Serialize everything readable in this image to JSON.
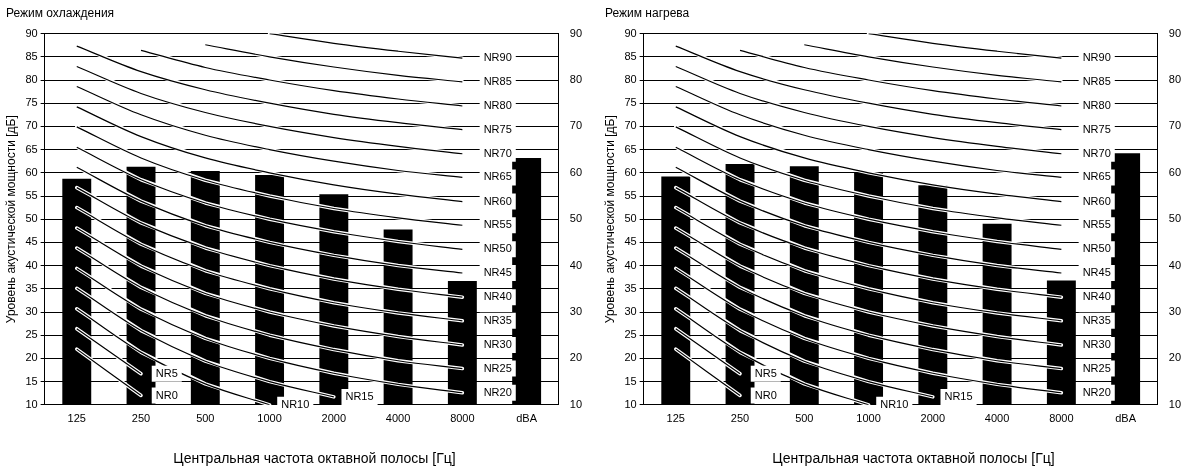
{
  "chart_data": [
    {
      "type": "bar",
      "title": "Режим охлаждения",
      "xlabel": "Центральная частота октавной полосы [Гц]",
      "ylabel": "Уровень акустической мощности [дБ]",
      "categories": [
        "125",
        "250",
        "500",
        "1000",
        "2000",
        "4000",
        "8000",
        "dBA"
      ],
      "grid": "y",
      "marker": "none",
      "ylim": [
        10,
        90
      ],
      "yticks": [
        10,
        15,
        20,
        25,
        30,
        35,
        40,
        45,
        50,
        55,
        60,
        65,
        70,
        75,
        80,
        85,
        90
      ],
      "y2lim": [
        10,
        90
      ],
      "y2ticks": [
        10,
        20,
        30,
        40,
        50,
        60,
        70,
        80,
        90
      ],
      "series": [
        {
          "type": "bar",
          "color": "#000000",
          "values": [
            58.7,
            61.3,
            60.4,
            59.5,
            55.4,
            47.8,
            36.7,
            63.2
          ]
        },
        {
          "type": "line",
          "name": "NR0",
          "color": "#000000",
          "values": [
            22,
            12,
            null,
            null,
            null,
            null,
            null,
            null
          ]
        },
        {
          "type": "line",
          "name": "NR5",
          "color": "#000000",
          "values": [
            26.4,
            16.7,
            null,
            null,
            null,
            null,
            null,
            null
          ]
        },
        {
          "type": "line",
          "name": "NR10",
          "color": "#000000",
          "values": [
            30.7,
            21.3,
            14.5,
            10,
            null,
            null,
            null,
            null
          ]
        },
        {
          "type": "line",
          "name": "NR15",
          "color": "#000000",
          "values": [
            35.1,
            26,
            19.4,
            15,
            11.7,
            null,
            null,
            null
          ]
        },
        {
          "type": "line",
          "name": "NR20",
          "color": "#000000",
          "values": [
            39.4,
            30.6,
            24.3,
            20,
            16.8,
            14.4,
            12.6,
            null
          ]
        },
        {
          "type": "line",
          "name": "NR25",
          "color": "#000000",
          "values": [
            43.8,
            35.3,
            29.2,
            25,
            21.9,
            19.5,
            17.8,
            null
          ]
        },
        {
          "type": "line",
          "name": "NR30",
          "color": "#000000",
          "values": [
            48.1,
            39.9,
            34,
            30,
            27,
            24.7,
            22.9,
            null
          ]
        },
        {
          "type": "line",
          "name": "NR35",
          "color": "#000000",
          "values": [
            52.5,
            44.6,
            38.9,
            35,
            32,
            29.8,
            28.1,
            null
          ]
        },
        {
          "type": "line",
          "name": "NR40",
          "color": "#000000",
          "values": [
            56.8,
            49.2,
            43.8,
            40,
            37.1,
            34.9,
            33.2,
            null
          ]
        },
        {
          "type": "line",
          "name": "NR45",
          "color": "#000000",
          "values": [
            61.2,
            53.9,
            48.6,
            45,
            42.2,
            40,
            38.4,
            null
          ]
        },
        {
          "type": "line",
          "name": "NR50",
          "color": "#000000",
          "values": [
            65.5,
            58.5,
            53.5,
            50,
            47.3,
            45.2,
            43.5,
            null
          ]
        },
        {
          "type": "line",
          "name": "NR55",
          "color": "#000000",
          "values": [
            69.9,
            63.2,
            58.4,
            55,
            52.3,
            50.3,
            48.7,
            null
          ]
        },
        {
          "type": "line",
          "name": "NR60",
          "color": "#000000",
          "values": [
            74.2,
            67.8,
            63.2,
            60,
            57.4,
            55.4,
            53.8,
            null
          ]
        },
        {
          "type": "line",
          "name": "NR65",
          "color": "#000000",
          "values": [
            78.6,
            72.5,
            68.1,
            65,
            62.5,
            60.5,
            59,
            null
          ]
        },
        {
          "type": "line",
          "name": "NR70",
          "color": "#000000",
          "values": [
            82.9,
            77.1,
            73,
            70,
            67.6,
            65.7,
            64.1,
            null
          ]
        },
        {
          "type": "line",
          "name": "NR75",
          "color": "#000000",
          "values": [
            87.3,
            81.8,
            77.9,
            75,
            72.6,
            70.8,
            69.3,
            null
          ]
        },
        {
          "type": "line",
          "name": "NR80",
          "color": "#000000",
          "values": [
            null,
            86.4,
            82.7,
            80,
            77.7,
            75.9,
            74.4,
            null
          ]
        },
        {
          "type": "line",
          "name": "NR85",
          "color": "#000000",
          "values": [
            null,
            null,
            87.6,
            85,
            82.8,
            81,
            79.6,
            null
          ]
        },
        {
          "type": "line",
          "name": "NR90",
          "color": "#000000",
          "values": [
            null,
            null,
            null,
            90,
            87.9,
            86.2,
            84.7,
            null
          ]
        }
      ]
    },
    {
      "type": "bar",
      "title": "Режим нагрева",
      "xlabel": "Центральная частота октавной полосы [Гц]",
      "ylabel": "Уровень акустической мощности [дБ]",
      "categories": [
        "125",
        "250",
        "500",
        "1000",
        "2000",
        "4000",
        "8000",
        "dBA"
      ],
      "grid": "y",
      "marker": "none",
      "ylim": [
        10,
        90
      ],
      "yticks": [
        10,
        15,
        20,
        25,
        30,
        35,
        40,
        45,
        50,
        55,
        60,
        65,
        70,
        75,
        80,
        85,
        90
      ],
      "y2lim": [
        10,
        90
      ],
      "y2ticks": [
        10,
        20,
        30,
        40,
        50,
        60,
        70,
        80,
        90
      ],
      "series": [
        {
          "type": "bar",
          "color": "#000000",
          "values": [
            59.2,
            61.9,
            61.4,
            60.1,
            57.3,
            49,
            36.8,
            64.2
          ]
        },
        {
          "type": "line",
          "name": "NR0",
          "color": "#000000",
          "values": [
            22,
            12,
            null,
            null,
            null,
            null,
            null,
            null
          ]
        },
        {
          "type": "line",
          "name": "NR5",
          "color": "#000000",
          "values": [
            26.4,
            16.7,
            null,
            null,
            null,
            null,
            null,
            null
          ]
        },
        {
          "type": "line",
          "name": "NR10",
          "color": "#000000",
          "values": [
            30.7,
            21.3,
            14.5,
            10,
            null,
            null,
            null,
            null
          ]
        },
        {
          "type": "line",
          "name": "NR15",
          "color": "#000000",
          "values": [
            35.1,
            26,
            19.4,
            15,
            11.7,
            null,
            null,
            null
          ]
        },
        {
          "type": "line",
          "name": "NR20",
          "color": "#000000",
          "values": [
            39.4,
            30.6,
            24.3,
            20,
            16.8,
            14.4,
            12.6,
            null
          ]
        },
        {
          "type": "line",
          "name": "NR25",
          "color": "#000000",
          "values": [
            43.8,
            35.3,
            29.2,
            25,
            21.9,
            19.5,
            17.8,
            null
          ]
        },
        {
          "type": "line",
          "name": "NR30",
          "color": "#000000",
          "values": [
            48.1,
            39.9,
            34,
            30,
            27,
            24.7,
            22.9,
            null
          ]
        },
        {
          "type": "line",
          "name": "NR35",
          "color": "#000000",
          "values": [
            52.5,
            44.6,
            38.9,
            35,
            32,
            29.8,
            28.1,
            null
          ]
        },
        {
          "type": "line",
          "name": "NR40",
          "color": "#000000",
          "values": [
            56.8,
            49.2,
            43.8,
            40,
            37.1,
            34.9,
            33.2,
            null
          ]
        },
        {
          "type": "line",
          "name": "NR45",
          "color": "#000000",
          "values": [
            61.2,
            53.9,
            48.6,
            45,
            42.2,
            40,
            38.4,
            null
          ]
        },
        {
          "type": "line",
          "name": "NR50",
          "color": "#000000",
          "values": [
            65.5,
            58.5,
            53.5,
            50,
            47.3,
            45.2,
            43.5,
            null
          ]
        },
        {
          "type": "line",
          "name": "NR55",
          "color": "#000000",
          "values": [
            69.9,
            63.2,
            58.4,
            55,
            52.3,
            50.3,
            48.7,
            null
          ]
        },
        {
          "type": "line",
          "name": "NR60",
          "color": "#000000",
          "values": [
            74.2,
            67.8,
            63.2,
            60,
            57.4,
            55.4,
            53.8,
            null
          ]
        },
        {
          "type": "line",
          "name": "NR65",
          "color": "#000000",
          "values": [
            78.6,
            72.5,
            68.1,
            65,
            62.5,
            60.5,
            59,
            null
          ]
        },
        {
          "type": "line",
          "name": "NR70",
          "color": "#000000",
          "values": [
            82.9,
            77.1,
            73,
            70,
            67.6,
            65.7,
            64.1,
            null
          ]
        },
        {
          "type": "line",
          "name": "NR75",
          "color": "#000000",
          "values": [
            87.3,
            81.8,
            77.9,
            75,
            72.6,
            70.8,
            69.3,
            null
          ]
        },
        {
          "type": "line",
          "name": "NR80",
          "color": "#000000",
          "values": [
            null,
            86.4,
            82.7,
            80,
            77.7,
            75.9,
            74.4,
            null
          ]
        },
        {
          "type": "line",
          "name": "NR85",
          "color": "#000000",
          "values": [
            null,
            null,
            87.6,
            85,
            82.8,
            81,
            79.6,
            null
          ]
        },
        {
          "type": "line",
          "name": "NR90",
          "color": "#000000",
          "values": [
            null,
            null,
            null,
            90,
            87.9,
            86.2,
            84.7,
            null
          ]
        }
      ]
    }
  ]
}
